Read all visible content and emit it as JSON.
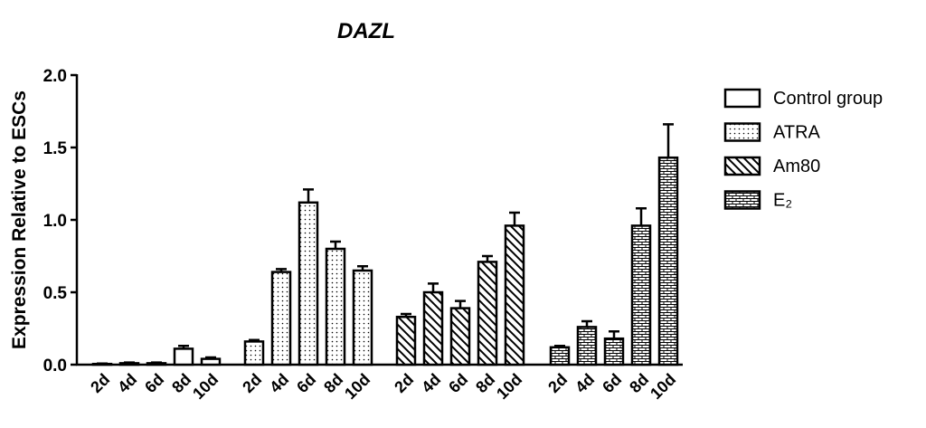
{
  "chart_data": {
    "type": "bar",
    "title": "DAZL",
    "y_label": "Expression Relative to ESCs",
    "categories": [
      "2d",
      "4d",
      "6d",
      "8d",
      "10d"
    ],
    "series": [
      {
        "name": "Control group",
        "color": "#000000",
        "pattern": "none",
        "values": [
          0.005,
          0.01,
          0.01,
          0.11,
          0.04
        ],
        "errors": [
          0.003,
          0.005,
          0.005,
          0.02,
          0.01
        ]
      },
      {
        "name": "ATRA",
        "color": "#000000",
        "pattern": "dots",
        "values": [
          0.16,
          0.64,
          1.12,
          0.8,
          0.65
        ],
        "errors": [
          0.01,
          0.02,
          0.09,
          0.05,
          0.03
        ]
      },
      {
        "name": "Am80",
        "color": "#000000",
        "pattern": "hatch",
        "values": [
          0.33,
          0.5,
          0.39,
          0.71,
          0.96
        ],
        "errors": [
          0.02,
          0.06,
          0.05,
          0.04,
          0.09
        ]
      },
      {
        "name": "E₂",
        "color": "#000000",
        "pattern": "brick",
        "values": [
          0.12,
          0.26,
          0.18,
          0.96,
          1.43
        ],
        "errors": [
          0.01,
          0.04,
          0.05,
          0.12,
          0.23
        ]
      }
    ],
    "ylim": [
      0,
      2
    ],
    "yticks": [
      {
        "value": 0,
        "label": "0.0"
      },
      {
        "value": 0.5,
        "label": "0.5"
      },
      {
        "value": 1,
        "label": "1.0"
      },
      {
        "value": 1.5,
        "label": "1.5"
      },
      {
        "value": 2,
        "label": "2.0"
      }
    ],
    "grid": false,
    "legend": "right"
  }
}
